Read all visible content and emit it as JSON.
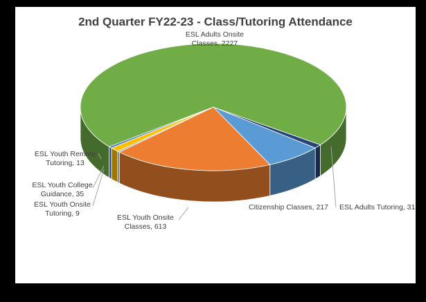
{
  "chart_data": {
    "type": "pie",
    "title": "2nd Quarter FY22-23 - Class/Tutoring Attendance",
    "values": [
      2227,
      31,
      217,
      613,
      9,
      35,
      13
    ],
    "value_labels": [
      "ESL Adults Onsite Classes, 2227",
      "ESL Adults Tutoring, 31",
      "Citizenship Classes, 217",
      "ESL Youth Onsite Classes, 613",
      "ESL Youth Onsite Tutoring, 9",
      "ESL Youth College Guidance, 35",
      "ESL Youth Remote Tutoring, 13"
    ],
    "colors": [
      "#70ad47",
      "#264478",
      "#5b9bd5",
      "#ed7d31",
      "#a5a5a5",
      "#ffc000",
      "#4472c4"
    ]
  }
}
